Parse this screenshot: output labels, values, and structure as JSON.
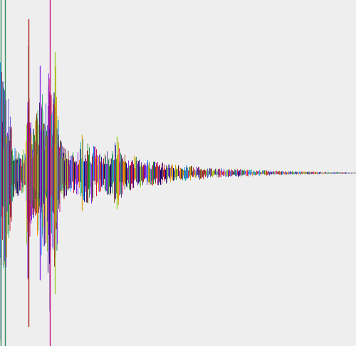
{
  "background": "#eeeeee",
  "chart_data": {
    "type": "bar",
    "style": "centered-vertical-lines",
    "grid": false,
    "legend": "none",
    "xlabel": "",
    "ylabel": "",
    "palette": [
      "#2e8b57",
      "#b22222",
      "#8a2be2",
      "#1e90ff",
      "#9acd32",
      "#c71585",
      "#4b0082",
      "#228b22",
      "#daa520",
      "#20b2aa",
      "#8b4513",
      "#6a5acd",
      "#dc143c",
      "#3cb371",
      "#483d8b",
      "#ff8c00",
      "#000080",
      "#9370db"
    ],
    "ylim": [
      -1,
      1
    ],
    "xlim": [
      0,
      500
    ],
    "envelope": [
      [
        0,
        1.0
      ],
      [
        1,
        1.0
      ],
      [
        3,
        0.55
      ],
      [
        6,
        0.6
      ],
      [
        8,
        0.65
      ],
      [
        10,
        0.5
      ],
      [
        14,
        0.35
      ],
      [
        18,
        0.18
      ],
      [
        22,
        0.14
      ],
      [
        30,
        0.12
      ],
      [
        36,
        0.16
      ],
      [
        40,
        0.9
      ],
      [
        42,
        0.3
      ],
      [
        48,
        0.28
      ],
      [
        55,
        0.42
      ],
      [
        58,
        0.5
      ],
      [
        62,
        0.45
      ],
      [
        66,
        0.38
      ],
      [
        70,
        1.0
      ],
      [
        72,
        0.4
      ],
      [
        76,
        0.55
      ],
      [
        78,
        0.7
      ],
      [
        82,
        0.25
      ],
      [
        90,
        0.15
      ],
      [
        100,
        0.12
      ],
      [
        110,
        0.13
      ],
      [
        115,
        0.22
      ],
      [
        125,
        0.2
      ],
      [
        140,
        0.12
      ],
      [
        155,
        0.14
      ],
      [
        165,
        0.2
      ],
      [
        175,
        0.11
      ],
      [
        190,
        0.1
      ],
      [
        210,
        0.08
      ],
      [
        225,
        0.07
      ],
      [
        250,
        0.05
      ],
      [
        280,
        0.04
      ],
      [
        300,
        0.03
      ],
      [
        330,
        0.025
      ],
      [
        360,
        0.018
      ],
      [
        400,
        0.012
      ],
      [
        440,
        0.008
      ],
      [
        500,
        0.003
      ]
    ],
    "spikes": [
      {
        "x": 1.5,
        "value": 1.0,
        "color": "#2e8b57"
      },
      {
        "x": 7.5,
        "value": 1.0,
        "color": "#2e8b57"
      },
      {
        "x": 40.5,
        "value": 0.89,
        "color": "#b22222"
      },
      {
        "x": 70.5,
        "value": 1.0,
        "color": "#c71585"
      },
      {
        "x": 77.5,
        "value": 0.7,
        "color": "#9acd32"
      },
      {
        "x": 56.5,
        "value": 0.62,
        "color": "#8a2be2"
      },
      {
        "x": 115.5,
        "value": 0.22,
        "color": "#daa520"
      },
      {
        "x": 164.5,
        "value": 0.21,
        "color": "#9acd32"
      }
    ]
  }
}
